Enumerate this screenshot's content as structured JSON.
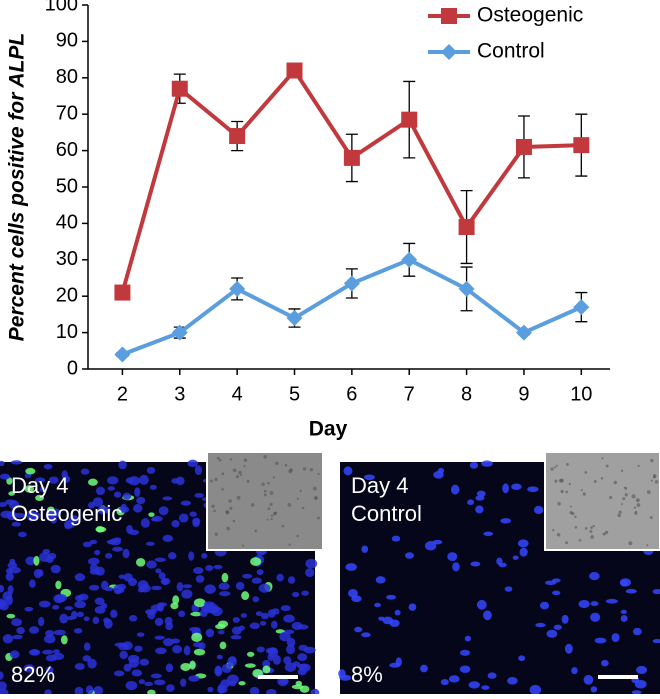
{
  "chart_data": {
    "type": "line",
    "ylabel": "Percent cells positive for ALPL",
    "xlabel": "Day",
    "x": [
      2,
      3,
      4,
      5,
      6,
      7,
      8,
      9,
      10
    ],
    "xlim": [
      1.4,
      10.5
    ],
    "xticks": [
      2,
      3,
      4,
      5,
      6,
      7,
      8,
      9,
      10
    ],
    "ylim": [
      0,
      100
    ],
    "yticks": [
      0,
      10,
      20,
      30,
      40,
      50,
      60,
      70,
      80,
      90,
      100
    ],
    "legend": "upper right",
    "series": [
      {
        "name": "Osteogenic",
        "color": "#c1393d",
        "marker": "square",
        "values": [
          21,
          77,
          64,
          82,
          58,
          68.5,
          39,
          61,
          61.5
        ],
        "errors": [
          1.5,
          4,
          4,
          1,
          6.5,
          10.5,
          10,
          8.5,
          8.5
        ]
      },
      {
        "name": "Control",
        "color": "#5b9ee0",
        "marker": "diamond",
        "values": [
          4,
          10,
          22,
          14,
          23.5,
          30,
          22,
          10,
          17
        ],
        "errors": [
          0.5,
          1.5,
          3,
          2.5,
          4,
          4.5,
          6,
          0.5,
          4
        ]
      }
    ]
  },
  "panels": [
    {
      "lines": [
        "Day 4",
        "Osteogenic"
      ],
      "percent": "82%"
    },
    {
      "lines": [
        "Day 4",
        "Control"
      ],
      "percent": "8%"
    }
  ]
}
